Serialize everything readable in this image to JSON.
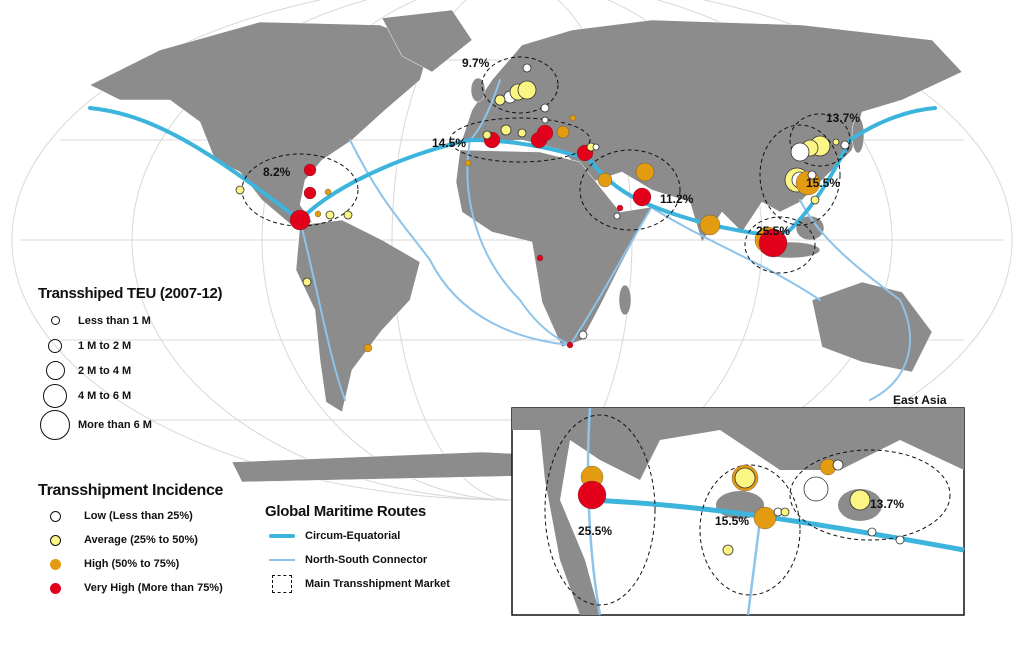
{
  "colors": {
    "land": "#8c8c8c",
    "circum_equatorial": "#3db4dc",
    "north_south": "#8ec3ea",
    "low": "#ffffff",
    "average": "#fbf583",
    "high": "#e39b12",
    "very_high": "#e3001b"
  },
  "market_labels": [
    "9.7%",
    "13.7%",
    "14.5%",
    "8.2%",
    "15.5%",
    "11.2%",
    "25.5%"
  ],
  "inset": {
    "title": "East Asia",
    "labels": [
      "25.5%",
      "15.5%",
      "13.7%"
    ]
  },
  "legend_teu": {
    "title": "Transshiped TEU (2007-12)",
    "items": [
      "Less than 1 M",
      "1 M to 2 M",
      "2 M to 4 M",
      "4 M to 6 M",
      "More than 6 M"
    ]
  },
  "legend_incidence": {
    "title": "Transshipment Incidence",
    "items": [
      "Low (Less than 25%)",
      "Average (25% to 50%)",
      "High (50% to 75%)",
      "Very High (More than 75%)"
    ]
  },
  "legend_routes": {
    "title": "Global Maritime Routes",
    "items": [
      "Circum-Equatorial",
      "North-South Connector",
      "Main Transshipment Market"
    ]
  }
}
